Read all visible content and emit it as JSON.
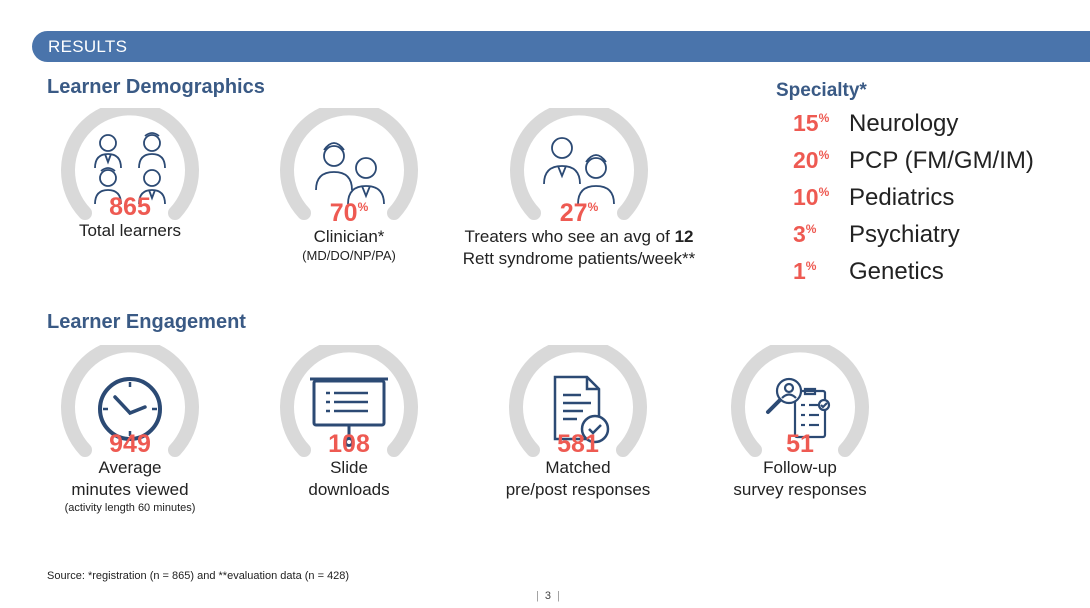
{
  "header": {
    "results_label": "RESULTS"
  },
  "demographics": {
    "title": "Learner Demographics",
    "stats": [
      {
        "value": "865",
        "suffix": "",
        "label": "Total learners",
        "sublabel": ""
      },
      {
        "value": "70",
        "suffix": "%",
        "label": "Clinician*",
        "sublabel": "(MD/DO/NP/PA)"
      },
      {
        "value": "27",
        "suffix": "%",
        "label_pre": "Treaters who see an avg of ",
        "label_bold": "12",
        "label_line2": "Rett syndrome patients/week**"
      }
    ]
  },
  "specialty": {
    "title": "Specialty*",
    "items": [
      {
        "pct": "15",
        "suffix": "%",
        "name": "Neurology"
      },
      {
        "pct": "20",
        "suffix": "%",
        "name": "PCP (FM/GM/IM)"
      },
      {
        "pct": "10",
        "suffix": "%",
        "name": "Pediatrics"
      },
      {
        "pct": "3",
        "suffix": "%",
        "name": "Psychiatry"
      },
      {
        "pct": "1",
        "suffix": "%",
        "name": "Genetics"
      }
    ]
  },
  "engagement": {
    "title": "Learner Engagement",
    "stats": [
      {
        "value": "949",
        "label1": "Average",
        "label2": "minutes viewed",
        "note": "(activity length 60 minutes)"
      },
      {
        "value": "108",
        "label1": "Slide",
        "label2": "downloads",
        "note": ""
      },
      {
        "value": "581",
        "label1": "Matched",
        "label2": "pre/post responses",
        "note": ""
      },
      {
        "value": "51",
        "label1": "Follow-up",
        "label2": "survey responses",
        "note": ""
      }
    ]
  },
  "footer": {
    "source": "Source: *registration (n = 865) and **evaluation data (n = 428)",
    "page": "3"
  },
  "colors": {
    "accent": "#ee5a52",
    "brand": "#4a74ab",
    "title": "#3a5a85",
    "arc": "#d9d9d9"
  },
  "icons": [
    "clinicians-group-icon",
    "doctors-pair-icon",
    "doctors-pair-icon",
    "clock-icon",
    "presentation-board-icon",
    "document-check-icon",
    "survey-clipboard-icon"
  ]
}
